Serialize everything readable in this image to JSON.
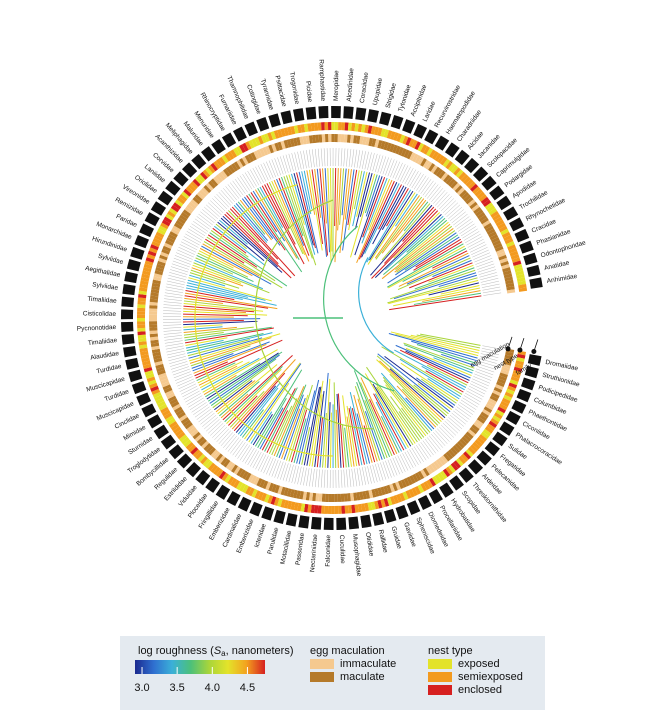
{
  "figure": {
    "families": [
      "Dromaiidae",
      "Struthionidae",
      "Podicipedidae",
      "Columbidae",
      "Phaethontidae",
      "Ciconiidae",
      "Phalacrocoracidae",
      "Sulidae",
      "Fregatidae",
      "Pelecanidae",
      "Ardeidae",
      "Threskiornithidae",
      "Scopidae",
      "Hydrobatidae",
      "Procellariidae",
      "Diomedeidae",
      "Spheniscidae",
      "Gaviidae",
      "Gruidae",
      "Rallidae",
      "Otididae",
      "Musophagidae",
      "Cuculidae",
      "Falconidae",
      "Nectariniidae",
      "Passeridae",
      "Motacillidae",
      "Parulidae",
      "Icteridae",
      "Emberizidae",
      "Cardinalidae",
      "Emberizidae",
      "Fringillidae",
      "Ploceidae",
      "Viduidae",
      "Estrildidae",
      "Regulidae",
      "Bombycillidae",
      "Troglodytidae",
      "Sturnidae",
      "Mimidae",
      "Cinclidae",
      "Muscicapidae",
      "Turdidae",
      "Muscicapidae",
      "Turdidae",
      "Alaudidae",
      "Timaliidae",
      "Pycnonotidae",
      "Cisticolidae",
      "Timaliidae",
      "Sylviidae",
      "Aegithalidae",
      "Sylviidae",
      "Hirundinidae",
      "Monarchidae",
      "Paridae",
      "Remizidae",
      "Vireonidae",
      "Oriolidae",
      "Laniidae",
      "Corvidae",
      "Acanthizidae",
      "Meliphagidae",
      "Maluridae",
      "Menuridae",
      "Rhinocryptidae",
      "Furnariidae",
      "Thamnophilidae",
      "Cotingidae",
      "Tyrannidae",
      "Psittacidae",
      "Trogonidae",
      "Picidae",
      "Ramphastidae",
      "Meropidae",
      "Alcedinidae",
      "Coraciidae",
      "Upupidae",
      "Strigidae",
      "Tytonidae",
      "Accipitridae",
      "Laridae",
      "Recurvirostridae",
      "Haematopodidae",
      "Charadriidae",
      "Alcidae",
      "Jacanidae",
      "Scolopacidae",
      "Caprimulgidae",
      "Podargidae",
      "Apodidae",
      "Trochilidae",
      "Rhynochetidae",
      "Cracidae",
      "Phasianidae",
      "Odontophoridae",
      "Anatidae",
      "Anhimidae"
    ],
    "ring_labels": [
      "egg maculation",
      "nest type",
      "family"
    ],
    "legend": {
      "roughness": {
        "title_pre": "log roughness (",
        "title_var": "S",
        "title_sub": "a",
        "title_post": ", nanometers)",
        "lim": [
          2.9,
          4.75
        ],
        "ticks": [
          {
            "value": 3,
            "label": "3.0"
          },
          {
            "value": 3.5,
            "label": "3.5"
          },
          {
            "value": 4,
            "label": "4.0"
          },
          {
            "value": 4.5,
            "label": "4.5"
          }
        ]
      },
      "egg": {
        "title": "egg maculation",
        "items": [
          {
            "name": "immaculate",
            "color": "#f5c98f"
          },
          {
            "name": "maculate",
            "color": "#b57a2a"
          }
        ]
      },
      "nest": {
        "title": "nest type",
        "items": [
          {
            "name": "exposed",
            "color": "#e3e32a"
          },
          {
            "name": "semiexposed",
            "color": "#f39a1f"
          },
          {
            "name": "enclosed",
            "color": "#d62020"
          }
        ]
      }
    }
  }
}
